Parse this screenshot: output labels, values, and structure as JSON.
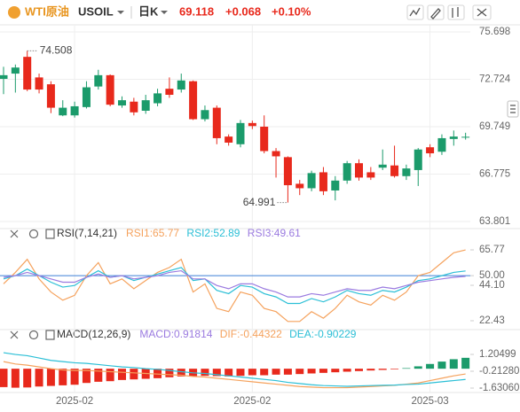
{
  "header": {
    "symbol_name": "WTI原油",
    "symbol": "USOIL",
    "period": "日K",
    "price": 69.118,
    "change": "+0.068",
    "change_pct": "+0.10%"
  },
  "chart_data": [
    {
      "type": "candlestick",
      "categories": [
        null,
        null,
        null,
        null,
        null,
        null,
        "2025-02",
        null,
        null,
        null,
        null,
        null,
        null,
        null,
        null,
        null,
        null,
        null,
        null,
        null,
        null,
        "2025-02",
        null,
        null,
        null,
        null,
        null,
        null,
        null,
        null,
        null,
        null,
        null,
        null,
        null,
        null,
        "2025-03",
        null,
        null,
        null
      ],
      "open": [
        72.75,
        73.08,
        74.13,
        72.84,
        72.41,
        70.46,
        70.46,
        70.98,
        72.27,
        72.98,
        71.08,
        71.32,
        70.75,
        71.22,
        72.13,
        72.08,
        72.6,
        70.22,
        70.94,
        69.13,
        68.65,
        69.98,
        69.75,
        68.22,
        67.84,
        66.17,
        65.89,
        66.89,
        65.75,
        66.37,
        67.46,
        66.89,
        67.18,
        67.32,
        66.65,
        67.03,
        68.46,
        68.18,
        68.98,
        69.08
      ],
      "high": [
        73.51,
        73.65,
        74.508,
        73.08,
        72.6,
        71.41,
        71.32,
        72.6,
        73.32,
        73.03,
        71.65,
        71.56,
        71.75,
        72.13,
        72.84,
        73.08,
        72.65,
        71.08,
        71.08,
        69.27,
        70.17,
        70.13,
        70.46,
        68.41,
        67.89,
        66.41,
        66.99,
        67.22,
        66.65,
        67.6,
        67.7,
        67.22,
        68.32,
        68.56,
        67.37,
        68.41,
        68.65,
        69.27,
        69.51,
        69.37
      ],
      "low": [
        71.79,
        71.89,
        71.98,
        71.84,
        70.6,
        70.41,
        70.32,
        70.89,
        72.08,
        71.03,
        70.94,
        70.46,
        70.56,
        71.03,
        71.56,
        71.89,
        70.17,
        70.08,
        68.65,
        68.56,
        68.46,
        69.6,
        68.08,
        66.56,
        64.991,
        65.46,
        65.7,
        65.46,
        65.13,
        66.17,
        66.37,
        66.41,
        67.03,
        66.56,
        66.41,
        66.03,
        67.84,
        67.98,
        68.56,
        68.94
      ],
      "close": [
        72.98,
        73.46,
        72.08,
        72.08,
        70.94,
        70.94,
        71.03,
        72.22,
        72.98,
        71.13,
        71.41,
        70.65,
        71.41,
        71.84,
        71.75,
        72.65,
        70.22,
        70.79,
        69.03,
        68.75,
        69.98,
        69.79,
        68.22,
        67.89,
        66.08,
        65.89,
        66.84,
        65.7,
        66.37,
        67.46,
        66.56,
        66.56,
        67.37,
        66.65,
        67.13,
        68.32,
        68.08,
        69.03,
        69.13,
        69.118
      ],
      "up_color": "#1b9b6b",
      "down_color": "#e8291c",
      "ylim": [
        63.47,
        76.14
      ],
      "yticks": [
        63.801,
        66.775,
        69.749,
        72.724,
        75.698
      ],
      "high_marker": 74.508,
      "low_marker": 64.991,
      "grid": true
    },
    {
      "type": "line",
      "title": "RSI(7,14,21)",
      "series": [
        {
          "name": "RSI1:65.77",
          "color": "#f5a25d",
          "values": [
            45,
            52,
            60,
            48,
            40,
            35,
            38,
            50,
            58,
            45,
            48,
            42,
            47,
            52,
            55,
            60,
            40,
            45,
            30,
            28,
            40,
            38,
            30,
            28,
            22,
            22,
            28,
            24,
            30,
            38,
            34,
            32,
            38,
            35,
            40,
            50,
            52,
            58,
            64,
            65.77
          ]
        },
        {
          "name": "RSI2:52.89",
          "color": "#2bbfd6",
          "values": [
            48,
            50,
            54,
            50,
            46,
            43,
            44,
            49,
            53,
            49,
            50,
            47,
            49,
            51,
            53,
            55,
            47,
            48,
            41,
            39,
            44,
            43,
            39,
            37,
            33,
            33,
            36,
            34,
            37,
            41,
            39,
            38,
            41,
            40,
            43,
            47,
            48,
            50,
            52,
            52.89
          ]
        },
        {
          "name": "RSI3:49.61",
          "color": "#9b7be0",
          "values": [
            49,
            50,
            52,
            50,
            48,
            46,
            46,
            49,
            51,
            49,
            50,
            48,
            49,
            50,
            52,
            53,
            48,
            48,
            44,
            42,
            45,
            45,
            42,
            40,
            37,
            37,
            39,
            38,
            40,
            42,
            41,
            41,
            43,
            42,
            44,
            46,
            47,
            48,
            49,
            49.61
          ]
        }
      ],
      "ylim": [
        18.1,
        71.2
      ],
      "yticks": [
        22.43,
        {
          "value": 44.1,
          "label": "44.10"
        },
        {
          "value": 50,
          "label": "50.00"
        },
        65.77
      ],
      "reference_line": 50,
      "reference_color": "#3d7fd6"
    },
    {
      "type": "macd",
      "title": "MACD(12,26,9)",
      "series": [
        {
          "name": "MACD:0.91814",
          "color": "#9b7be0",
          "kind": "bar",
          "values": [
            -1.55,
            -1.6,
            -1.58,
            -1.5,
            -1.45,
            -1.4,
            -1.35,
            -1.2,
            -1.1,
            -1.05,
            -0.95,
            -0.9,
            -0.85,
            -0.8,
            -0.72,
            -0.65,
            -0.62,
            -0.6,
            -0.62,
            -0.65,
            -0.6,
            -0.55,
            -0.55,
            -0.5,
            -0.5,
            -0.45,
            -0.4,
            -0.35,
            -0.3,
            -0.25,
            -0.2,
            -0.15,
            -0.1,
            -0.05,
            0.05,
            0.2,
            0.4,
            0.6,
            0.8,
            0.91814
          ]
        },
        {
          "name": "DIF:-0.44322",
          "color": "#f5a25d",
          "kind": "line",
          "values": [
            0.6,
            0.4,
            0.3,
            0.15,
            0,
            -0.1,
            -0.15,
            -0.15,
            -0.2,
            -0.25,
            -0.3,
            -0.35,
            -0.4,
            -0.45,
            -0.5,
            -0.55,
            -0.65,
            -0.7,
            -0.8,
            -0.9,
            -1.0,
            -1.1,
            -1.2,
            -1.3,
            -1.4,
            -1.5,
            -1.55,
            -1.6,
            -1.6,
            -1.6,
            -1.55,
            -1.5,
            -1.45,
            -1.4,
            -1.3,
            -1.2,
            -1.0,
            -0.8,
            -0.6,
            -0.44322
          ]
        },
        {
          "name": "DEA:-0.90229",
          "color": "#2bbfd6",
          "kind": "line",
          "values": [
            1.35,
            1.2,
            1.1,
            0.9,
            0.7,
            0.6,
            0.5,
            0.45,
            0.35,
            0.25,
            0.15,
            0.1,
            0.0,
            -0.05,
            -0.15,
            -0.25,
            -0.35,
            -0.4,
            -0.5,
            -0.6,
            -0.7,
            -0.8,
            -0.9,
            -1.0,
            -1.15,
            -1.25,
            -1.35,
            -1.42,
            -1.45,
            -1.48,
            -1.45,
            -1.42,
            -1.4,
            -1.38,
            -1.33,
            -1.3,
            -1.2,
            -1.1,
            -1.0,
            -0.90229
          ]
        }
      ],
      "pos_color": "#1b9b6b",
      "neg_color": "#e8291c",
      "ylim": [
        -1.93,
        2.25
      ],
      "yticks": [
        {
          "value": -1.6306,
          "label": "-1.63060"
        },
        {
          "value": -0.2128,
          "label": "-0.21280"
        },
        1.20499
      ]
    }
  ]
}
